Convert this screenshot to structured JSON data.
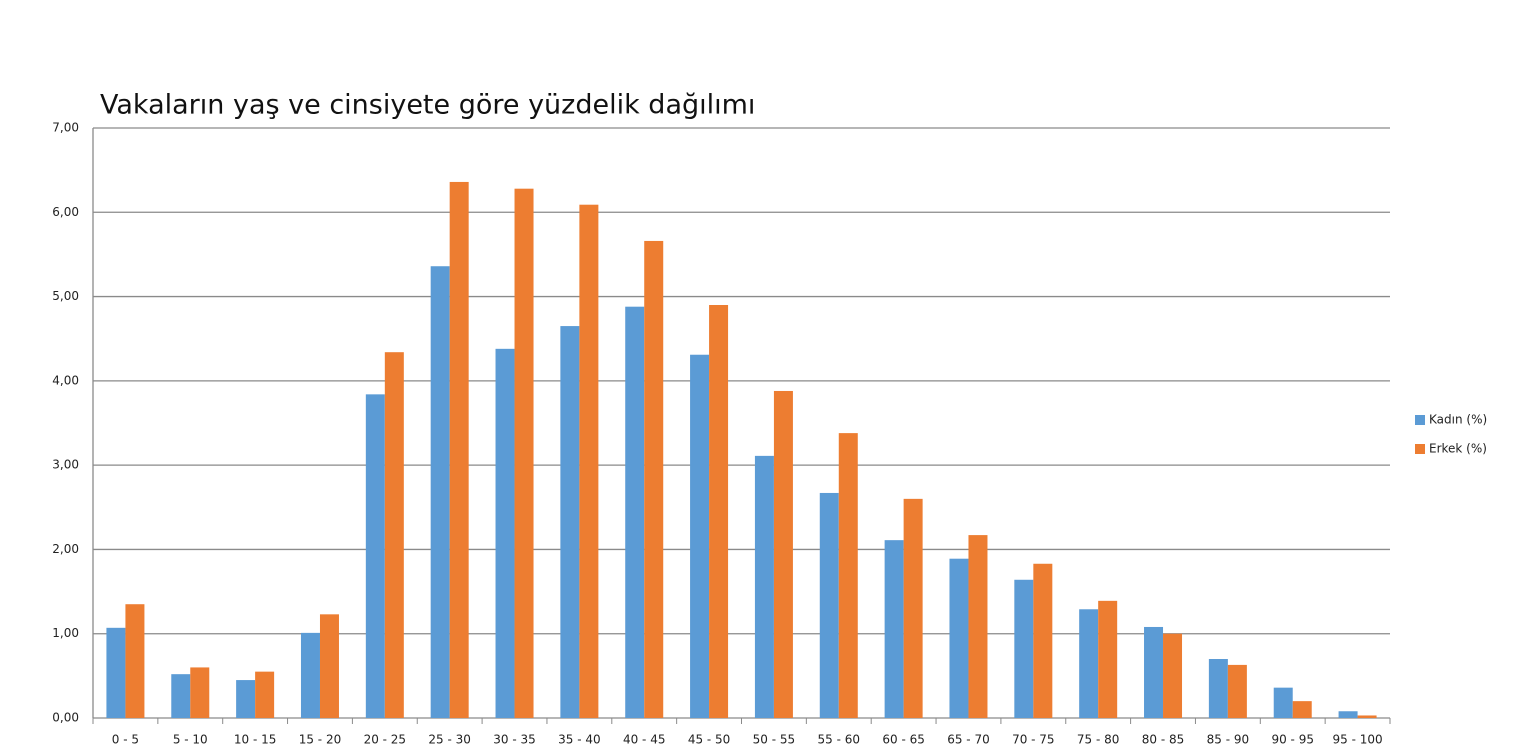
{
  "chart_data": {
    "type": "bar",
    "title": "Vakaların yaş ve cinsiyete göre yüzdelik dağılımı",
    "categories": [
      "0 - 5",
      "5 - 10",
      "10 - 15",
      "15 - 20",
      "20 - 25",
      "25 - 30",
      "30 - 35",
      "35 - 40",
      "40 - 45",
      "45 - 50",
      "50 - 55",
      "55 - 60",
      "60 - 65",
      "65 - 70",
      "70 - 75",
      "75 - 80",
      "80 - 85",
      "85 - 90",
      "90 - 95",
      "95 - 100"
    ],
    "series": [
      {
        "name": "Kadın (%)",
        "color": "#5b9bd5",
        "values": [
          1.07,
          0.52,
          0.45,
          1.01,
          3.84,
          5.36,
          4.38,
          4.65,
          4.88,
          4.31,
          3.11,
          2.67,
          2.11,
          1.89,
          1.64,
          1.29,
          1.08,
          0.7,
          0.36,
          0.08
        ]
      },
      {
        "name": "Erkek (%)",
        "color": "#ed7d31",
        "values": [
          1.35,
          0.6,
          0.55,
          1.23,
          4.34,
          6.36,
          6.28,
          6.09,
          5.66,
          4.9,
          3.88,
          3.38,
          2.6,
          2.17,
          1.83,
          1.39,
          1.0,
          0.63,
          0.2,
          0.03
        ]
      }
    ],
    "ylim": [
      0,
      7
    ],
    "yticks": [
      {
        "value": 0,
        "label": "0,00"
      },
      {
        "value": 1,
        "label": "1,00"
      },
      {
        "value": 2,
        "label": "2,00"
      },
      {
        "value": 3,
        "label": "3,00"
      },
      {
        "value": 4,
        "label": "4,00"
      },
      {
        "value": 5,
        "label": "5,00"
      },
      {
        "value": 6,
        "label": "6,00"
      },
      {
        "value": 7,
        "label": "7,00"
      }
    ],
    "grid": true,
    "legend": "right"
  }
}
